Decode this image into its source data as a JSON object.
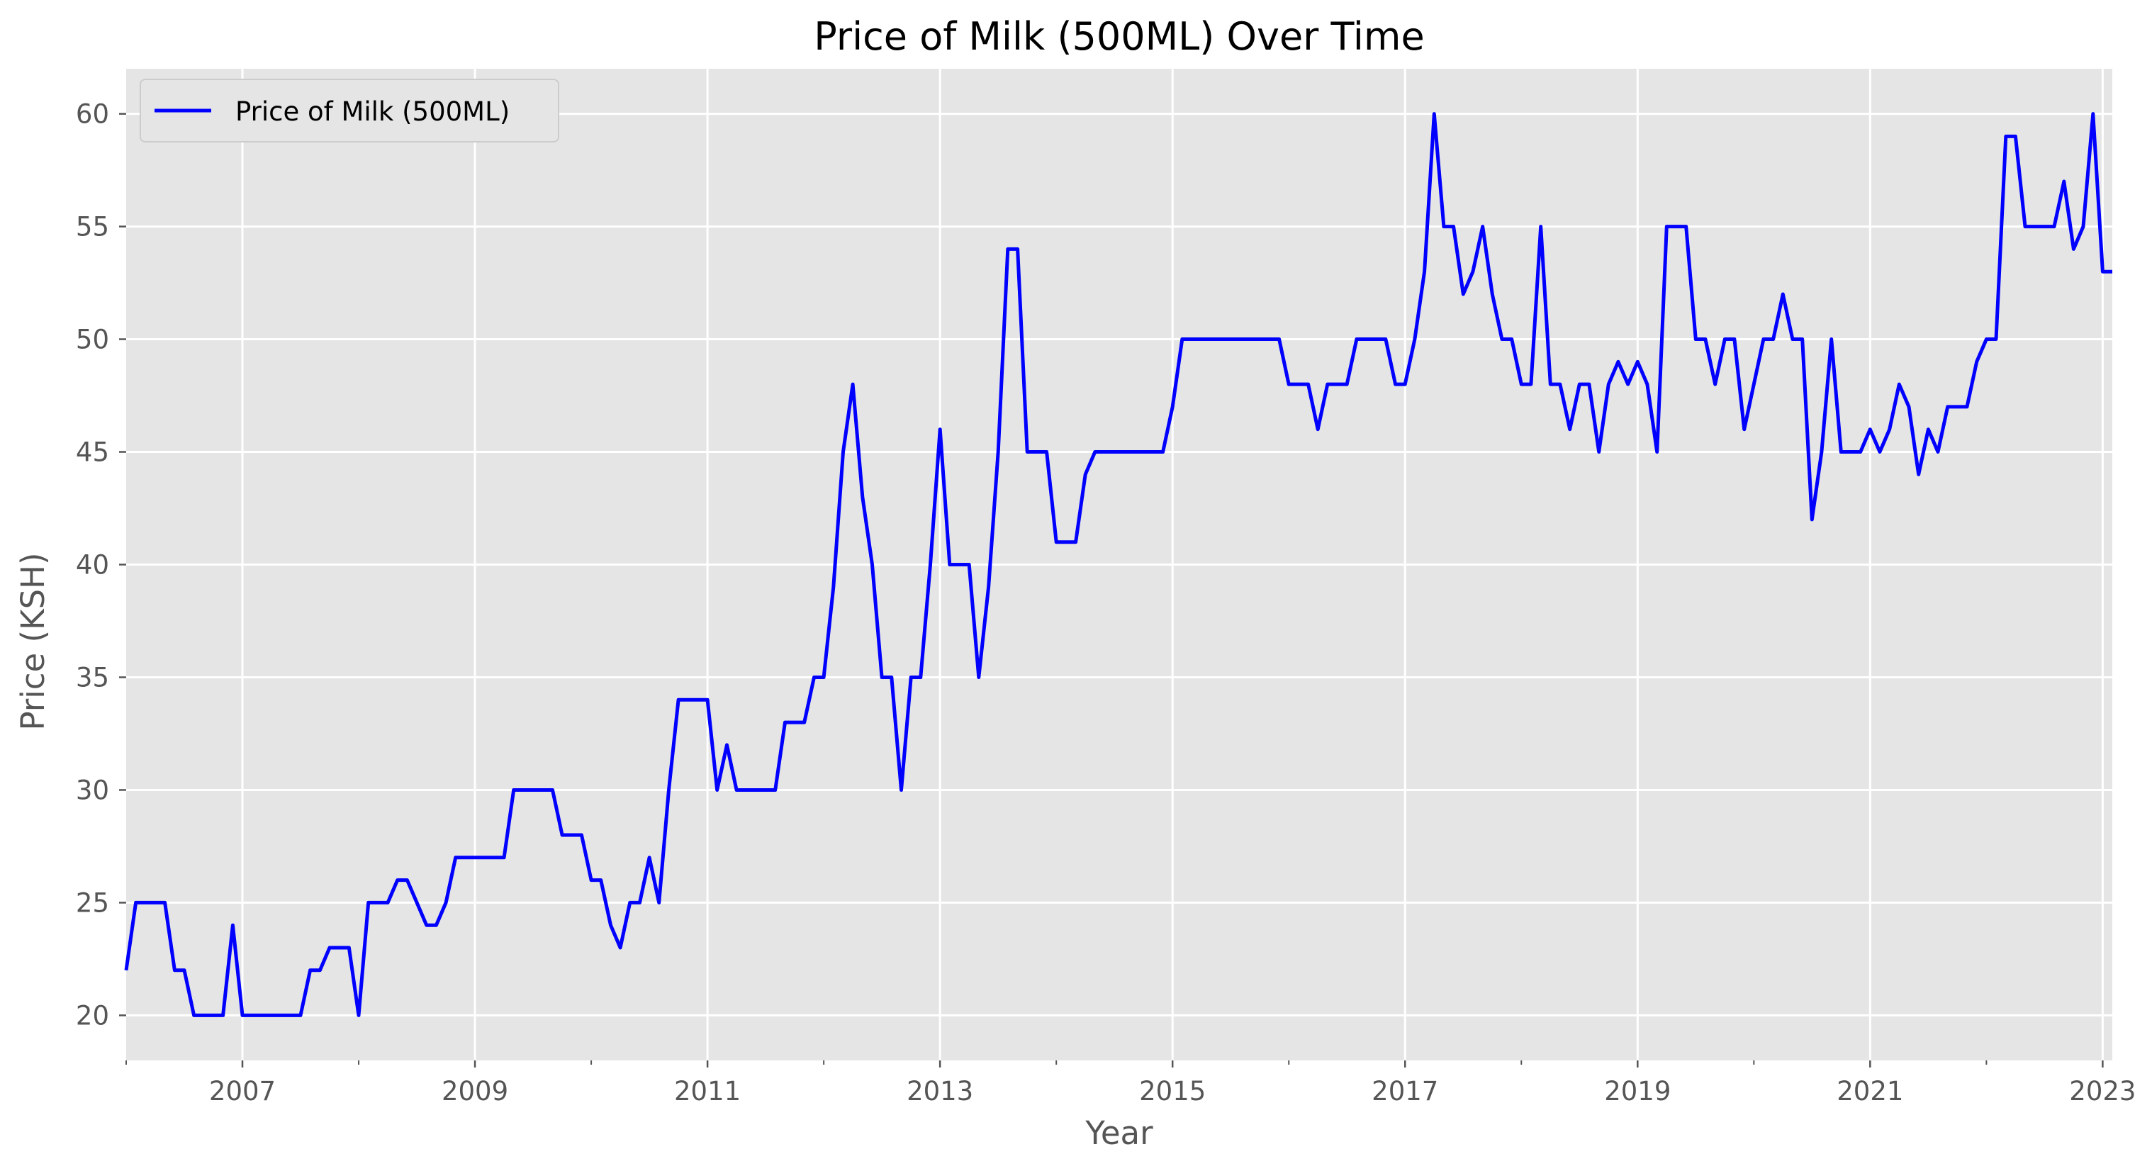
{
  "chart_data": {
    "type": "line",
    "title": "Price of Milk (500ML) Over Time",
    "xlabel": "Year",
    "ylabel": "Price (KSH)",
    "xlim": [
      2006.0,
      2023.083
    ],
    "ylim": [
      18,
      62
    ],
    "x_ticks": [
      2007,
      2009,
      2011,
      2013,
      2015,
      2017,
      2019,
      2021,
      2023
    ],
    "y_ticks": [
      20,
      25,
      30,
      35,
      40,
      45,
      50,
      55,
      60
    ],
    "grid": true,
    "legend": {
      "position": "top-left",
      "entries": [
        "Price of Milk (500ML)"
      ]
    },
    "colors": {
      "line": "#0000ff",
      "plot_bg": "#e5e5e5",
      "grid": "#ffffff"
    },
    "series": [
      {
        "name": "Price of Milk (500ML)",
        "points": [
          [
            2006.0,
            22
          ],
          [
            2006.083,
            25
          ],
          [
            2006.167,
            25
          ],
          [
            2006.25,
            25
          ],
          [
            2006.333,
            25
          ],
          [
            2006.417,
            22
          ],
          [
            2006.5,
            22
          ],
          [
            2006.583,
            20
          ],
          [
            2006.667,
            20
          ],
          [
            2006.75,
            20
          ],
          [
            2006.833,
            20
          ],
          [
            2006.917,
            24
          ],
          [
            2007.0,
            20
          ],
          [
            2007.083,
            20
          ],
          [
            2007.167,
            20
          ],
          [
            2007.25,
            20
          ],
          [
            2007.333,
            20
          ],
          [
            2007.417,
            20
          ],
          [
            2007.5,
            20
          ],
          [
            2007.583,
            22
          ],
          [
            2007.667,
            22
          ],
          [
            2007.75,
            23
          ],
          [
            2007.833,
            23
          ],
          [
            2007.917,
            23
          ],
          [
            2008.0,
            20
          ],
          [
            2008.083,
            25
          ],
          [
            2008.167,
            25
          ],
          [
            2008.25,
            25
          ],
          [
            2008.333,
            26
          ],
          [
            2008.417,
            26
          ],
          [
            2008.5,
            25
          ],
          [
            2008.583,
            24
          ],
          [
            2008.667,
            24
          ],
          [
            2008.75,
            25
          ],
          [
            2008.833,
            27
          ],
          [
            2008.917,
            27
          ],
          [
            2009.0,
            27
          ],
          [
            2009.083,
            27
          ],
          [
            2009.167,
            27
          ],
          [
            2009.25,
            27
          ],
          [
            2009.333,
            30
          ],
          [
            2009.417,
            30
          ],
          [
            2009.5,
            30
          ],
          [
            2009.583,
            30
          ],
          [
            2009.667,
            30
          ],
          [
            2009.75,
            28
          ],
          [
            2009.833,
            28
          ],
          [
            2009.917,
            28
          ],
          [
            2010.0,
            26
          ],
          [
            2010.083,
            26
          ],
          [
            2010.167,
            24
          ],
          [
            2010.25,
            23
          ],
          [
            2010.333,
            25
          ],
          [
            2010.417,
            25
          ],
          [
            2010.5,
            27
          ],
          [
            2010.583,
            25
          ],
          [
            2010.667,
            30
          ],
          [
            2010.75,
            34
          ],
          [
            2010.833,
            34
          ],
          [
            2010.917,
            34
          ],
          [
            2011.0,
            34
          ],
          [
            2011.083,
            30
          ],
          [
            2011.167,
            32
          ],
          [
            2011.25,
            30
          ],
          [
            2011.333,
            30
          ],
          [
            2011.417,
            30
          ],
          [
            2011.5,
            30
          ],
          [
            2011.583,
            30
          ],
          [
            2011.667,
            33
          ],
          [
            2011.75,
            33
          ],
          [
            2011.833,
            33
          ],
          [
            2011.917,
            35
          ],
          [
            2012.0,
            35
          ],
          [
            2012.083,
            39
          ],
          [
            2012.167,
            45
          ],
          [
            2012.25,
            48
          ],
          [
            2012.333,
            43
          ],
          [
            2012.417,
            40
          ],
          [
            2012.5,
            35
          ],
          [
            2012.583,
            35
          ],
          [
            2012.667,
            30
          ],
          [
            2012.75,
            35
          ],
          [
            2012.833,
            35
          ],
          [
            2012.917,
            40
          ],
          [
            2013.0,
            46
          ],
          [
            2013.083,
            40
          ],
          [
            2013.167,
            40
          ],
          [
            2013.25,
            40
          ],
          [
            2013.333,
            35
          ],
          [
            2013.417,
            39
          ],
          [
            2013.5,
            45
          ],
          [
            2013.583,
            54
          ],
          [
            2013.667,
            54
          ],
          [
            2013.75,
            45
          ],
          [
            2013.833,
            45
          ],
          [
            2013.917,
            45
          ],
          [
            2014.0,
            41
          ],
          [
            2014.083,
            41
          ],
          [
            2014.167,
            41
          ],
          [
            2014.25,
            44
          ],
          [
            2014.333,
            45
          ],
          [
            2014.417,
            45
          ],
          [
            2014.5,
            45
          ],
          [
            2014.583,
            45
          ],
          [
            2014.667,
            45
          ],
          [
            2014.75,
            45
          ],
          [
            2014.833,
            45
          ],
          [
            2014.917,
            45
          ],
          [
            2015.0,
            47
          ],
          [
            2015.083,
            50
          ],
          [
            2015.167,
            50
          ],
          [
            2015.25,
            50
          ],
          [
            2015.333,
            50
          ],
          [
            2015.417,
            50
          ],
          [
            2015.5,
            50
          ],
          [
            2015.583,
            50
          ],
          [
            2015.667,
            50
          ],
          [
            2015.75,
            50
          ],
          [
            2015.833,
            50
          ],
          [
            2015.917,
            50
          ],
          [
            2016.0,
            48
          ],
          [
            2016.083,
            48
          ],
          [
            2016.167,
            48
          ],
          [
            2016.25,
            46
          ],
          [
            2016.333,
            48
          ],
          [
            2016.417,
            48
          ],
          [
            2016.5,
            48
          ],
          [
            2016.583,
            50
          ],
          [
            2016.667,
            50
          ],
          [
            2016.75,
            50
          ],
          [
            2016.833,
            50
          ],
          [
            2016.917,
            48
          ],
          [
            2017.0,
            48
          ],
          [
            2017.083,
            50
          ],
          [
            2017.167,
            53
          ],
          [
            2017.25,
            60
          ],
          [
            2017.333,
            55
          ],
          [
            2017.417,
            55
          ],
          [
            2017.5,
            52
          ],
          [
            2017.583,
            53
          ],
          [
            2017.667,
            55
          ],
          [
            2017.75,
            52
          ],
          [
            2017.833,
            50
          ],
          [
            2017.917,
            50
          ],
          [
            2018.0,
            48
          ],
          [
            2018.083,
            48
          ],
          [
            2018.167,
            55
          ],
          [
            2018.25,
            48
          ],
          [
            2018.333,
            48
          ],
          [
            2018.417,
            46
          ],
          [
            2018.5,
            48
          ],
          [
            2018.583,
            48
          ],
          [
            2018.667,
            45
          ],
          [
            2018.75,
            48
          ],
          [
            2018.833,
            49
          ],
          [
            2018.917,
            48
          ],
          [
            2019.0,
            49
          ],
          [
            2019.083,
            48
          ],
          [
            2019.167,
            45
          ],
          [
            2019.25,
            55
          ],
          [
            2019.333,
            55
          ],
          [
            2019.417,
            55
          ],
          [
            2019.5,
            50
          ],
          [
            2019.583,
            50
          ],
          [
            2019.667,
            48
          ],
          [
            2019.75,
            50
          ],
          [
            2019.833,
            50
          ],
          [
            2019.917,
            46
          ],
          [
            2020.0,
            48
          ],
          [
            2020.083,
            50
          ],
          [
            2020.167,
            50
          ],
          [
            2020.25,
            52
          ],
          [
            2020.333,
            50
          ],
          [
            2020.417,
            50
          ],
          [
            2020.5,
            42
          ],
          [
            2020.583,
            45
          ],
          [
            2020.667,
            50
          ],
          [
            2020.75,
            45
          ],
          [
            2020.833,
            45
          ],
          [
            2020.917,
            45
          ],
          [
            2021.0,
            46
          ],
          [
            2021.083,
            45
          ],
          [
            2021.167,
            46
          ],
          [
            2021.25,
            48
          ],
          [
            2021.333,
            47
          ],
          [
            2021.417,
            44
          ],
          [
            2021.5,
            46
          ],
          [
            2021.583,
            45
          ],
          [
            2021.667,
            47
          ],
          [
            2021.75,
            47
          ],
          [
            2021.833,
            47
          ],
          [
            2021.917,
            49
          ],
          [
            2022.0,
            50
          ],
          [
            2022.083,
            50
          ],
          [
            2022.167,
            59
          ],
          [
            2022.25,
            59
          ],
          [
            2022.333,
            55
          ],
          [
            2022.417,
            55
          ],
          [
            2022.5,
            55
          ],
          [
            2022.583,
            55
          ],
          [
            2022.667,
            57
          ],
          [
            2022.75,
            54
          ],
          [
            2022.833,
            55
          ],
          [
            2022.917,
            60
          ],
          [
            2023.0,
            53
          ],
          [
            2023.083,
            53
          ]
        ]
      }
    ]
  }
}
